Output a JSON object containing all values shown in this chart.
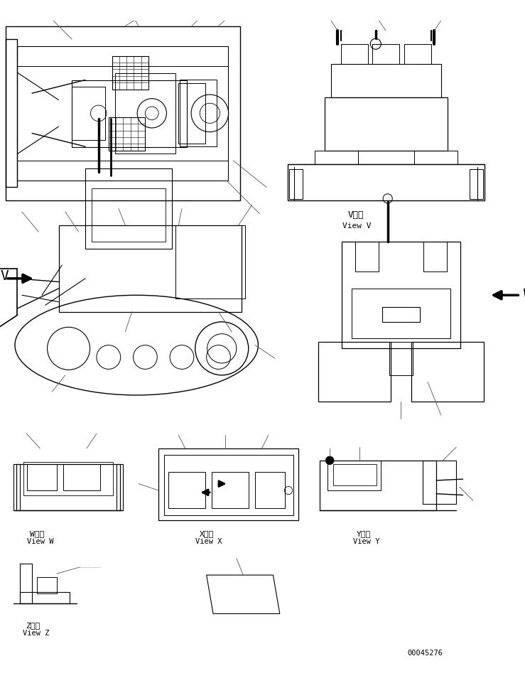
{
  "background_color": "#ffffff",
  "part_number": "00045276",
  "lc": "#000000",
  "lw_thin": 0.5,
  "lw_med": 0.8,
  "lw_thick": 1.2,
  "views": {
    "view_v_label_jp": "V　視",
    "view_v_label_en": "View V",
    "view_w_label_jp": "W　視",
    "view_w_label_en": "View W",
    "view_x_label_jp": "X　視",
    "view_x_label_en": "View X",
    "view_y_label_jp": "Y　視",
    "view_y_label_en": "View Y",
    "view_z_label_jp": "Z　視",
    "view_z_label_en": "View Z"
  }
}
